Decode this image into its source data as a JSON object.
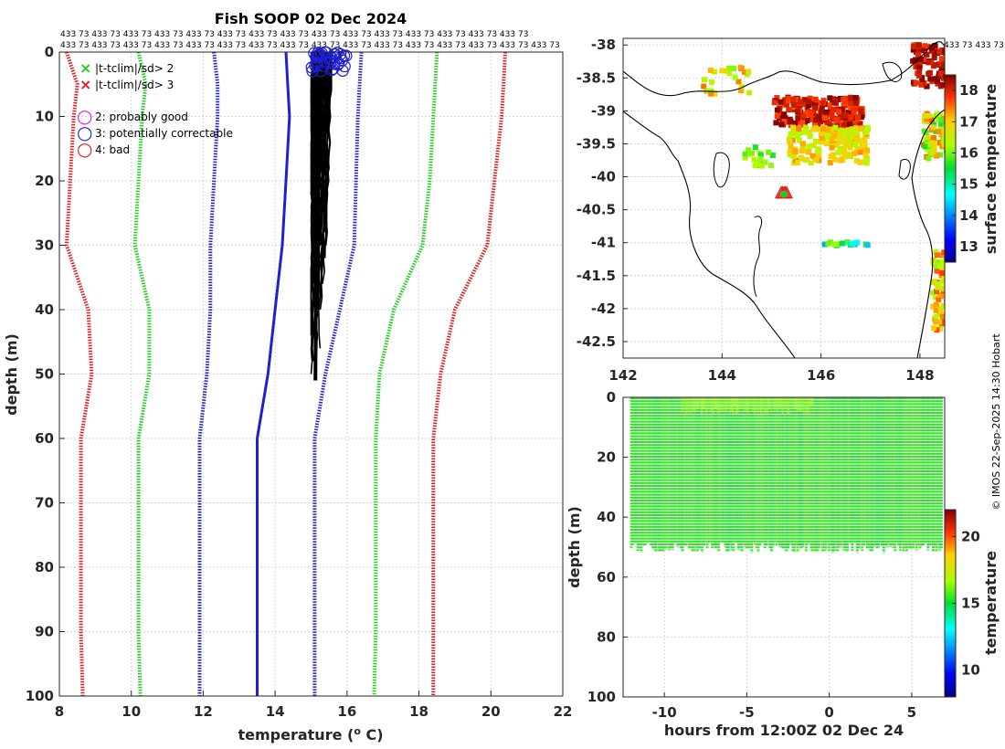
{
  "title": "Fish SOOP 02 Dec 2024",
  "credit": "© IMOS 22-Sep-2025 14:30 Hobart",
  "count_labels": {
    "row1": "433 73 433 73 433 73 433 73 433 73 433 73 433 73 433 73 433 73 433 73 433 73 433 73 433 73 433 73 433 73",
    "row2": "433 73 433 73 433 73 433 73 433 73 433 73 433 73 433 73 433 73 433 73 433 73 433 73 433 73 433 73 433 73 433 73",
    "map_row": "433 73 433 73"
  },
  "legend": {
    "items": [
      {
        "symbol": "×",
        "color": "#22cc22",
        "label": "|t-tclim|/sd> 2"
      },
      {
        "symbol": "×",
        "color": "#e41a1c",
        "label": "|t-tclim|/sd> 3"
      },
      {
        "symbol": "○",
        "color": "#dd22dd",
        "label": "2: probably good"
      },
      {
        "symbol": "○",
        "color": "#1f1fd6",
        "label": "3: potentially correctable"
      },
      {
        "symbol": "○",
        "color": "#e41a1c",
        "label": "4: bad"
      }
    ]
  },
  "chart_data": [
    {
      "type": "line",
      "title": "Fish SOOP 02 Dec 2024",
      "xlabel": "temperature (",
      "xlabel_sup": "o",
      "xlabel_end": " C)",
      "ylabel": "depth (m)",
      "xlim": [
        8,
        22
      ],
      "ylim": [
        0,
        100
      ],
      "xticks": [
        "8",
        "10",
        "12",
        "14",
        "16",
        "18",
        "20",
        "22"
      ],
      "yticks": [
        "0",
        "10",
        "20",
        "30",
        "40",
        "50",
        "60",
        "70",
        "80",
        "90",
        "100"
      ],
      "depth": [
        0,
        5,
        10,
        20,
        30,
        40,
        50,
        60,
        90,
        100
      ],
      "series": [
        {
          "name": "clim -3sd",
          "color": "#e41a1c",
          "style": "dotted",
          "values": [
            8.2,
            8.5,
            8.4,
            8.3,
            8.2,
            8.8,
            8.9,
            8.6,
            8.6,
            8.65
          ]
        },
        {
          "name": "clim -2sd",
          "color": "#22cc22",
          "style": "dotted",
          "values": [
            10.2,
            10.4,
            10.3,
            10.2,
            10.1,
            10.5,
            10.5,
            10.2,
            10.2,
            10.25
          ]
        },
        {
          "name": "clim -1sd",
          "color": "#1f1fd6",
          "style": "dotted",
          "values": [
            12.3,
            12.4,
            12.4,
            12.3,
            12.2,
            12.2,
            12.1,
            11.9,
            11.9,
            11.9
          ]
        },
        {
          "name": "clim mean",
          "color": "#1f1fd6",
          "style": "solid",
          "values": [
            14.3,
            14.35,
            14.4,
            14.3,
            14.2,
            14.0,
            13.8,
            13.5,
            13.5,
            13.5
          ]
        },
        {
          "name": "clim +1sd",
          "color": "#1f1fd6",
          "style": "dotted",
          "values": [
            16.4,
            16.35,
            16.3,
            16.25,
            16.2,
            15.8,
            15.4,
            15.1,
            15.1,
            15.1
          ]
        },
        {
          "name": "clim +2sd",
          "color": "#22cc22",
          "style": "dotted",
          "values": [
            18.5,
            18.45,
            18.4,
            18.3,
            18.1,
            17.3,
            16.9,
            16.8,
            16.8,
            16.75
          ]
        },
        {
          "name": "clim +3sd",
          "color": "#e41a1c",
          "style": "dotted",
          "values": [
            20.4,
            20.35,
            20.3,
            20.1,
            19.9,
            19.0,
            18.6,
            18.4,
            18.4,
            18.4
          ]
        }
      ],
      "profiles": {
        "color": "#000000",
        "depth_max": 51,
        "t_min": 15.0,
        "t_max": 15.6,
        "flag3_near_surface_t": [
          15.0,
          16.0
        ]
      }
    },
    {
      "type": "heatmap",
      "xlim": [
        142,
        148.5
      ],
      "ylim": [
        -42.75,
        -37.9
      ],
      "xticks": [
        "142",
        "144",
        "146",
        "148"
      ],
      "yticks": [
        "-38",
        "-38.5",
        "-39",
        "-39.5",
        "-40",
        "-40.5",
        "-41",
        "-41.5",
        "-42",
        "-42.5"
      ],
      "colorbar_label": "surface temperature",
      "colorbar_range": [
        12.5,
        18.5
      ],
      "colorbar_ticks": [
        "13",
        "14",
        "15",
        "16",
        "17",
        "18"
      ],
      "track_marker": {
        "lon": 145.25,
        "lat": -40.25
      }
    },
    {
      "type": "scatter",
      "xlabel": "hours from 12:00Z 02 Dec 24",
      "ylabel": "depth (m)",
      "xlim": [
        -12.5,
        7
      ],
      "ylim": [
        0,
        100
      ],
      "xticks": [
        "-10",
        "-5",
        "0",
        "5"
      ],
      "yticks": [
        "0",
        "20",
        "40",
        "60",
        "80",
        "100"
      ],
      "colorbar_label": "temperature",
      "colorbar_range": [
        8,
        22
      ],
      "colorbar_ticks": [
        "10",
        "15",
        "20"
      ],
      "profile_depth_max": 50,
      "temperature_range": [
        15.0,
        16.5
      ]
    }
  ]
}
